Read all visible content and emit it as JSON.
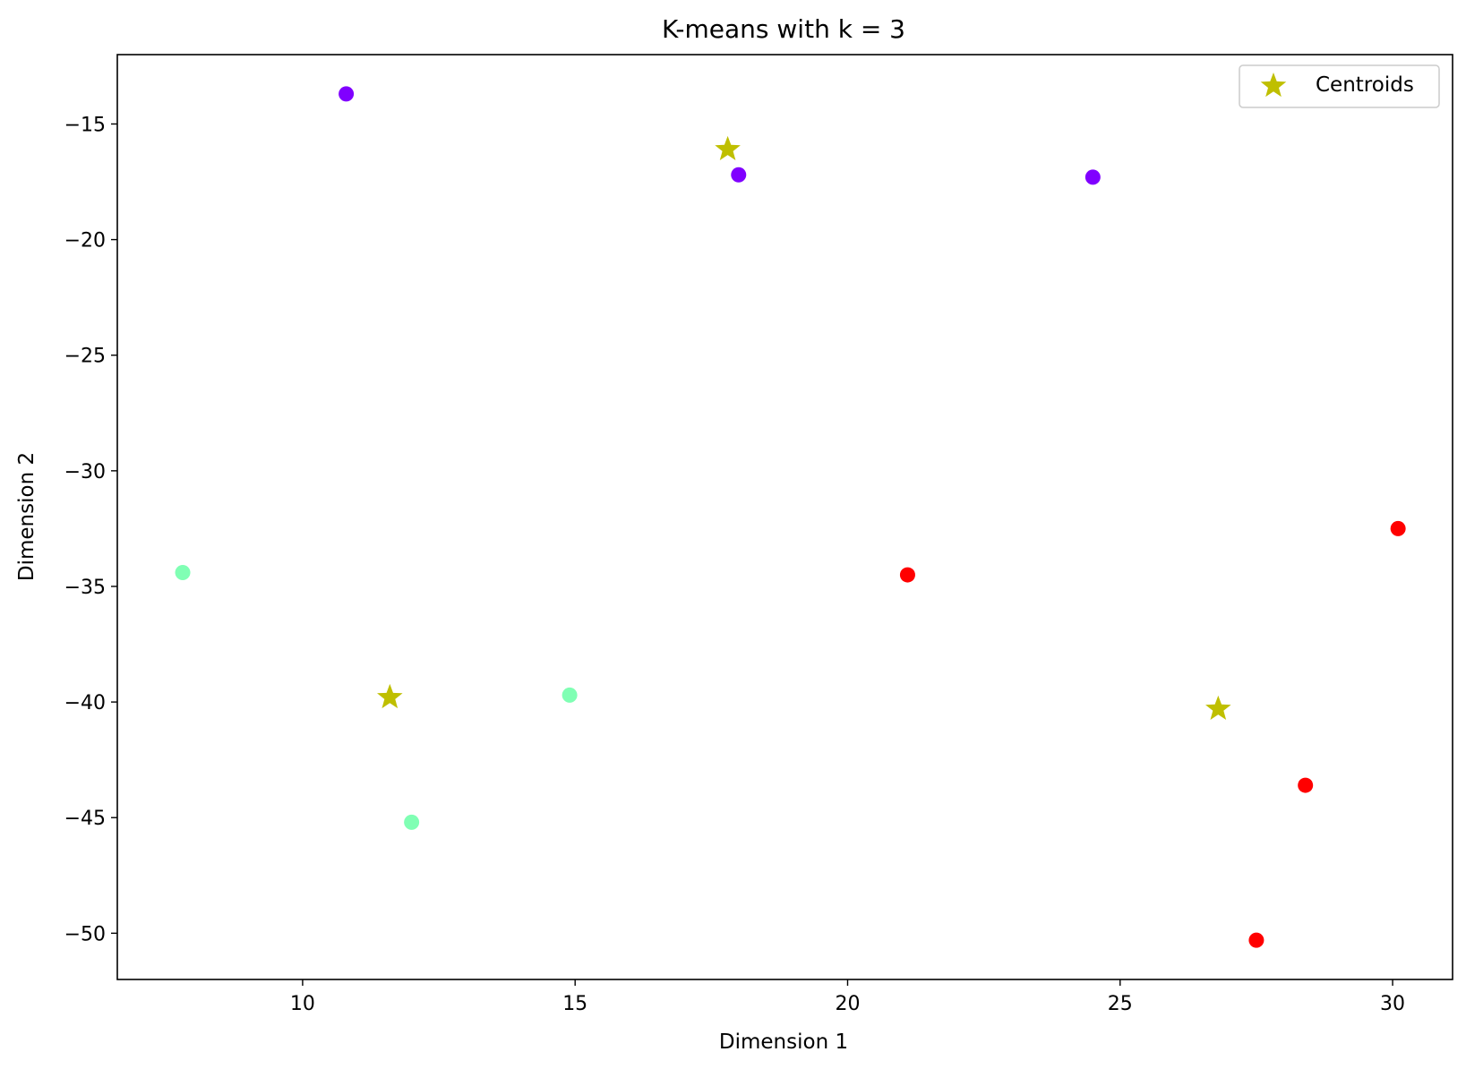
{
  "chart_data": {
    "type": "scatter",
    "title": "K-means with k = 3",
    "xlabel": "Dimension 1",
    "ylabel": "Dimension 2",
    "xlim": [
      6.6,
      31.1
    ],
    "ylim": [
      -52.0,
      -12.0
    ],
    "xticks": [
      10,
      15,
      20,
      25,
      30
    ],
    "yticks": [
      -15,
      -20,
      -25,
      -30,
      -35,
      -40,
      -45,
      -50
    ],
    "grid": false,
    "legend_position": "upper right",
    "points": [
      {
        "x": 10.8,
        "y": -13.7,
        "cluster": 0,
        "color": "#8000ff"
      },
      {
        "x": 18.0,
        "y": -17.2,
        "cluster": 0,
        "color": "#8000ff"
      },
      {
        "x": 24.5,
        "y": -17.3,
        "cluster": 0,
        "color": "#8000ff"
      },
      {
        "x": 7.8,
        "y": -34.4,
        "cluster": 1,
        "color": "#80ffb4"
      },
      {
        "x": 14.9,
        "y": -39.7,
        "cluster": 1,
        "color": "#80ffb4"
      },
      {
        "x": 12.0,
        "y": -45.2,
        "cluster": 1,
        "color": "#80ffb4"
      },
      {
        "x": 21.1,
        "y": -34.5,
        "cluster": 2,
        "color": "#ff0000"
      },
      {
        "x": 30.1,
        "y": -32.5,
        "cluster": 2,
        "color": "#ff0000"
      },
      {
        "x": 28.4,
        "y": -43.6,
        "cluster": 2,
        "color": "#ff0000"
      },
      {
        "x": 27.5,
        "y": -50.3,
        "cluster": 2,
        "color": "#ff0000"
      }
    ],
    "series": [
      {
        "name": "Centroids",
        "marker": "star",
        "color": "#bfbf00",
        "points": [
          {
            "x": 17.8,
            "y": -16.1
          },
          {
            "x": 11.6,
            "y": -39.8
          },
          {
            "x": 26.8,
            "y": -40.3
          }
        ]
      }
    ]
  }
}
